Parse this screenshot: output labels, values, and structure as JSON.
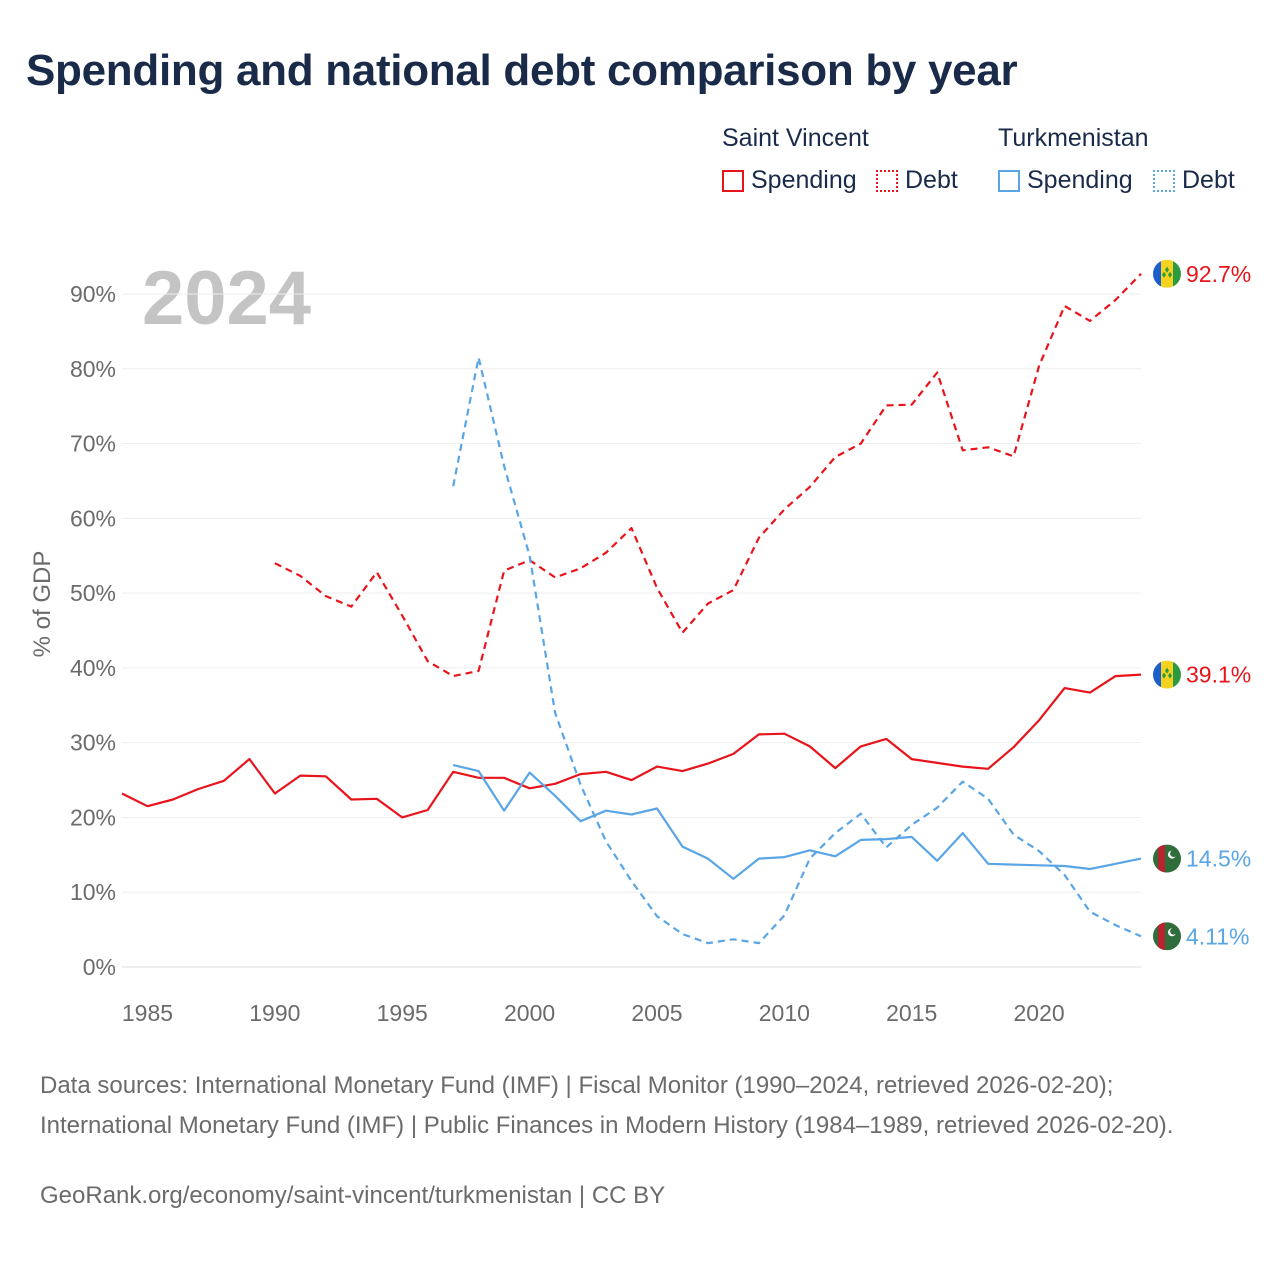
{
  "title": "Spending and national debt comparison by year",
  "legend": {
    "groups": [
      {
        "country": "Saint Vincent",
        "color": "#e8141b",
        "items": [
          "Spending",
          "Debt"
        ]
      },
      {
        "country": "Turkmenistan",
        "color": "#5aa5e6",
        "items": [
          "Spending",
          "Debt"
        ]
      }
    ]
  },
  "chart_data": {
    "type": "line",
    "year_watermark": "2024",
    "ylabel": "% of GDP",
    "xlim": [
      1984,
      2024
    ],
    "ylim": [
      0,
      90
    ],
    "x_ticks": [
      "1985",
      "1990",
      "1995",
      "2000",
      "2005",
      "2010",
      "2015",
      "2020"
    ],
    "y_ticks": [
      "0%",
      "10%",
      "20%",
      "30%",
      "40%",
      "50%",
      "60%",
      "70%",
      "80%",
      "90%"
    ],
    "series": [
      {
        "name": "Saint Vincent Spending",
        "country": "Saint Vincent",
        "metric": "Spending",
        "color": "#e8141b",
        "dashed": false,
        "end_label": "39.1%",
        "flag": "saint-vincent",
        "points": [
          [
            1984,
            23.2
          ],
          [
            1985,
            21.5
          ],
          [
            1986,
            22.4
          ],
          [
            1987,
            23.8
          ],
          [
            1988,
            24.9
          ],
          [
            1989,
            27.8
          ],
          [
            1990,
            23.2
          ],
          [
            1991,
            25.6
          ],
          [
            1992,
            25.5
          ],
          [
            1993,
            22.4
          ],
          [
            1994,
            22.5
          ],
          [
            1995,
            20.0
          ],
          [
            1996,
            21.0
          ],
          [
            1997,
            26.1
          ],
          [
            1998,
            25.3
          ],
          [
            1999,
            25.3
          ],
          [
            2000,
            23.9
          ],
          [
            2001,
            24.5
          ],
          [
            2002,
            25.8
          ],
          [
            2003,
            26.1
          ],
          [
            2004,
            25.0
          ],
          [
            2005,
            26.8
          ],
          [
            2006,
            26.2
          ],
          [
            2007,
            27.2
          ],
          [
            2008,
            28.5
          ],
          [
            2009,
            31.1
          ],
          [
            2010,
            31.2
          ],
          [
            2011,
            29.5
          ],
          [
            2012,
            26.6
          ],
          [
            2013,
            29.5
          ],
          [
            2014,
            30.5
          ],
          [
            2015,
            27.8
          ],
          [
            2016,
            27.3
          ],
          [
            2017,
            26.8
          ],
          [
            2018,
            26.5
          ],
          [
            2019,
            29.4
          ],
          [
            2020,
            33.0
          ],
          [
            2021,
            37.3
          ],
          [
            2022,
            36.7
          ],
          [
            2023,
            38.9
          ],
          [
            2024,
            39.1
          ]
        ]
      },
      {
        "name": "Saint Vincent Debt",
        "country": "Saint Vincent",
        "metric": "Debt",
        "color": "#e8141b",
        "dashed": true,
        "end_label": "92.7%",
        "flag": "saint-vincent",
        "points": [
          [
            1990,
            54.0
          ],
          [
            1991,
            52.3
          ],
          [
            1992,
            49.6
          ],
          [
            1993,
            48.2
          ],
          [
            1994,
            52.8
          ],
          [
            1995,
            47.0
          ],
          [
            1996,
            40.9
          ],
          [
            1997,
            38.9
          ],
          [
            1998,
            39.6
          ],
          [
            1999,
            53.0
          ],
          [
            2000,
            54.4
          ],
          [
            2001,
            52.1
          ],
          [
            2002,
            53.3
          ],
          [
            2003,
            55.4
          ],
          [
            2004,
            58.7
          ],
          [
            2005,
            50.7
          ],
          [
            2006,
            44.7
          ],
          [
            2007,
            48.6
          ],
          [
            2008,
            50.4
          ],
          [
            2009,
            57.4
          ],
          [
            2010,
            61.2
          ],
          [
            2011,
            64.2
          ],
          [
            2012,
            68.2
          ],
          [
            2013,
            70.0
          ],
          [
            2014,
            75.1
          ],
          [
            2015,
            75.2
          ],
          [
            2016,
            79.5
          ],
          [
            2017,
            69.1
          ],
          [
            2018,
            69.5
          ],
          [
            2019,
            68.3
          ],
          [
            2020,
            80.4
          ],
          [
            2021,
            88.4
          ],
          [
            2022,
            86.4
          ],
          [
            2023,
            89.2
          ],
          [
            2024,
            92.7
          ]
        ]
      },
      {
        "name": "Turkmenistan Spending",
        "country": "Turkmenistan",
        "metric": "Spending",
        "color": "#5aa5e6",
        "dashed": false,
        "end_label": "14.5%",
        "flag": "turkmenistan",
        "points": [
          [
            1997,
            27.0
          ],
          [
            1998,
            26.2
          ],
          [
            1999,
            20.9
          ],
          [
            2000,
            26.0
          ],
          [
            2001,
            22.9
          ],
          [
            2002,
            19.5
          ],
          [
            2003,
            20.9
          ],
          [
            2004,
            20.4
          ],
          [
            2005,
            21.2
          ],
          [
            2006,
            16.1
          ],
          [
            2007,
            14.5
          ],
          [
            2008,
            11.8
          ],
          [
            2009,
            14.5
          ],
          [
            2010,
            14.7
          ],
          [
            2011,
            15.6
          ],
          [
            2012,
            14.8
          ],
          [
            2013,
            17.0
          ],
          [
            2014,
            17.1
          ],
          [
            2015,
            17.4
          ],
          [
            2016,
            14.2
          ],
          [
            2017,
            17.9
          ],
          [
            2018,
            13.8
          ],
          [
            2019,
            13.7
          ],
          [
            2020,
            13.6
          ],
          [
            2021,
            13.5
          ],
          [
            2022,
            13.1
          ],
          [
            2023,
            13.8
          ],
          [
            2024,
            14.5
          ]
        ]
      },
      {
        "name": "Turkmenistan Debt",
        "country": "Turkmenistan",
        "metric": "Debt",
        "color": "#5aa5e6",
        "dashed": true,
        "end_label": "4.11%",
        "flag": "turkmenistan",
        "points": [
          [
            1997,
            64.3
          ],
          [
            1998,
            81.5
          ],
          [
            1999,
            67.0
          ],
          [
            2000,
            55.0
          ],
          [
            2001,
            34.0
          ],
          [
            2002,
            24.4
          ],
          [
            2003,
            16.8
          ],
          [
            2004,
            11.5
          ],
          [
            2005,
            6.8
          ],
          [
            2006,
            4.4
          ],
          [
            2007,
            3.2
          ],
          [
            2008,
            3.7
          ],
          [
            2009,
            3.2
          ],
          [
            2010,
            6.9
          ],
          [
            2011,
            14.5
          ],
          [
            2012,
            17.9
          ],
          [
            2013,
            20.5
          ],
          [
            2014,
            16.0
          ],
          [
            2015,
            19.0
          ],
          [
            2016,
            21.3
          ],
          [
            2017,
            24.8
          ],
          [
            2018,
            22.5
          ],
          [
            2019,
            17.7
          ],
          [
            2020,
            15.5
          ],
          [
            2021,
            12.3
          ],
          [
            2022,
            7.4
          ],
          [
            2023,
            5.6
          ],
          [
            2024,
            4.11
          ]
        ]
      }
    ]
  },
  "footer": {
    "sources": "Data sources: International Monetary Fund (IMF) | Fiscal Monitor (1990–2024, retrieved 2026-02-20); International Monetary Fund (IMF) | Public Finances in Modern History (1984–1989, retrieved 2026-02-20).",
    "credit": "GeoRank.org/economy/saint-vincent/turkmenistan | CC BY"
  }
}
